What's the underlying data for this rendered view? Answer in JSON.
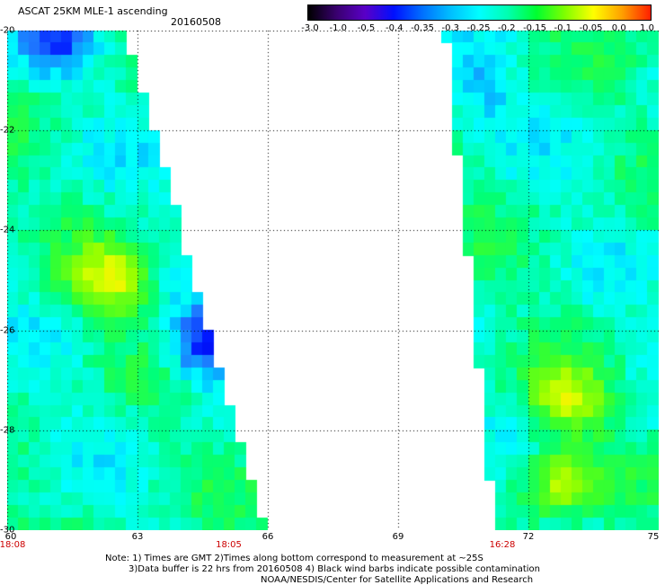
{
  "header": {
    "title": "ASCAT 25KM MLE-1 ascending",
    "date": "20160508"
  },
  "colorbar": {
    "labels": [
      "-3.0",
      "-1.0",
      "-0.5",
      "-0.4",
      "-0.35",
      "-0.3",
      "-0.25",
      "-0.2",
      "-0.15",
      "-0.1",
      "-0.05",
      "0.0",
      "1.0"
    ],
    "colors": [
      "#000000",
      "#3a0070",
      "#5a00c8",
      "#0010ff",
      "#0070ff",
      "#00c0ff",
      "#00ffff",
      "#00ffb0",
      "#00ff30",
      "#80ff00",
      "#ffff00",
      "#ffa000",
      "#ff2000"
    ]
  },
  "chart_data": {
    "type": "heatmap",
    "title": "ASCAT 25KM MLE-1 ascending",
    "subtitle": "20160508",
    "x_ticks": [
      "60",
      "63",
      "66",
      "69",
      "72",
      "75"
    ],
    "y_ticks": [
      "-20",
      "-22",
      "-24",
      "-26",
      "-28",
      "-30"
    ],
    "xlim": [
      60,
      75
    ],
    "ylim": [
      -30,
      -20
    ],
    "grid": true,
    "colorbar_range": [
      -3.0,
      1.0
    ],
    "swaths": [
      {
        "name": "western swath",
        "lon_range": [
          60,
          65.95
        ],
        "lat_range": [
          -30,
          -20
        ],
        "pass_times": [
          "18:08",
          "18:05"
        ]
      },
      {
        "name": "eastern swath",
        "lon_range": [
          70.1,
          75
        ],
        "lat_range": [
          -30,
          -20
        ],
        "pass_times": [
          "16:28"
        ]
      }
    ],
    "features": [
      {
        "description": "high",
        "lon": 62.4,
        "lat": -25.0,
        "value": -0.08
      },
      {
        "description": "low",
        "lon": 64.6,
        "lat": -26.3,
        "value": -0.42
      },
      {
        "description": "low",
        "lon": 61.1,
        "lat": -20.2,
        "value": -0.36
      },
      {
        "description": "high",
        "lon": 72.9,
        "lat": -27.4,
        "value": -0.1
      },
      {
        "description": "high",
        "lon": 72.7,
        "lat": -29.0,
        "value": -0.1
      },
      {
        "description": "low",
        "lon": 70.7,
        "lat": -21.2,
        "value": -0.32
      }
    ]
  },
  "time_labels": [
    {
      "text": "18:08",
      "lon": 60
    },
    {
      "text": "18:05",
      "lon": 65.1
    },
    {
      "text": "16:28",
      "lon": 71.4
    }
  ],
  "notes": {
    "line1": "Note: 1) Times are GMT 2)Times along bottom correspond to measurement at ~25S",
    "line2": "3)Data buffer is 22 hrs from 20160508 4) Black wind barbs indicate possible contamination",
    "line3": "NOAA/NESDIS/Center for Satellite Applications and Research"
  }
}
